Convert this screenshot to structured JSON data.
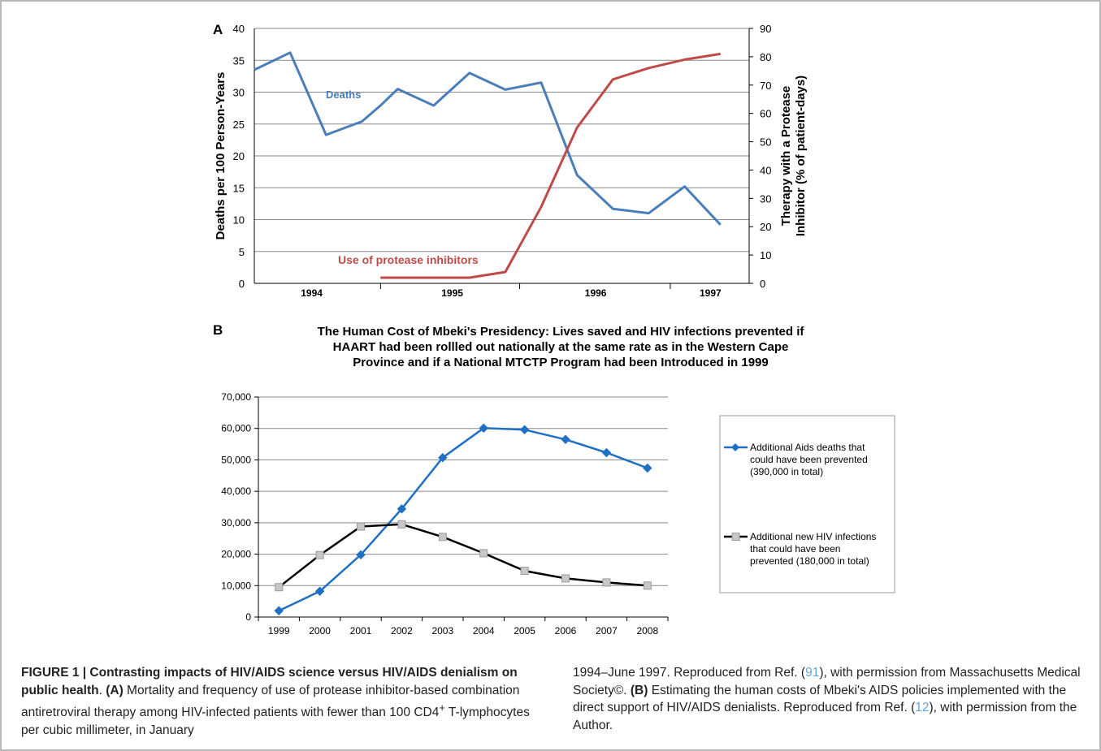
{
  "chart_data": [
    {
      "type": "line",
      "panel": "A",
      "ylabel_left": "Deaths per 100 Person-Years",
      "ylabel_right_line1": "Therapy with a Protease",
      "ylabel_right_line2": "Inhibitor (% of patient-days)",
      "ylim_left": [
        0,
        40
      ],
      "ylim_right": [
        0,
        90
      ],
      "yticks_left": [
        0,
        5,
        10,
        15,
        20,
        25,
        30,
        35,
        40
      ],
      "yticks_right": [
        0,
        10,
        20,
        30,
        40,
        50,
        60,
        70,
        80,
        90
      ],
      "year_labels": [
        "1994",
        "1995",
        "1996",
        "1997"
      ],
      "grid": true,
      "series": [
        {
          "name": "Deaths",
          "axis": "left",
          "color": "#4a7ebb",
          "x": [
            1994.0,
            1994.25,
            1994.5,
            1994.75,
            1994.88,
            1995.0,
            1995.25,
            1995.5,
            1995.75,
            1996.0,
            1996.25,
            1996.5,
            1996.75,
            1997.0,
            1997.25
          ],
          "values": [
            33.5,
            36.2,
            23.3,
            25.4,
            27.9,
            30.5,
            27.9,
            33.0,
            30.4,
            31.5,
            17.0,
            11.7,
            11.0,
            15.2,
            9.2
          ]
        },
        {
          "name": "Use of protease inhibitors",
          "axis": "right",
          "color": "#be4b48",
          "x": [
            1994.88,
            1995.0,
            1995.25,
            1995.5,
            1995.75,
            1996.0,
            1996.25,
            1996.5,
            1996.75,
            1997.0,
            1997.25
          ],
          "values": [
            2,
            2,
            2,
            2,
            4,
            27,
            55,
            72,
            76,
            79,
            81
          ]
        }
      ]
    },
    {
      "type": "line",
      "panel": "B",
      "title_lines": [
        "The Human Cost of Mbeki's Presidency: Lives saved and HIV infections prevented if",
        "HAART had been rollled out nationally at the same rate as in the Western Cape",
        "Province and if a National MTCTP Program had been Introduced in 1999"
      ],
      "categories": [
        "1999",
        "2000",
        "2001",
        "2002",
        "2003",
        "2004",
        "2005",
        "2006",
        "2007",
        "2008"
      ],
      "ylim": [
        0,
        70000
      ],
      "yticks": [
        "0",
        "10,000",
        "20,000",
        "30,000",
        "40,000",
        "50,000",
        "60,000",
        "70,000"
      ],
      "grid": true,
      "legend_position": "right",
      "series": [
        {
          "name_lines": [
            "Additional Aids deaths that",
            "could have been prevented",
            "(390,000 in total)"
          ],
          "color": "#1f6fc4",
          "marker": "diamond",
          "values": [
            2000,
            8200,
            19800,
            34400,
            50700,
            60100,
            59600,
            56500,
            52300,
            47400
          ]
        },
        {
          "name_lines": [
            "Additional new HIV infections",
            "that could have been",
            "prevented (180,000 in total)"
          ],
          "color": "#000000",
          "marker": "square",
          "values": [
            9500,
            19700,
            28800,
            29500,
            25500,
            20300,
            14700,
            12300,
            11000,
            10000
          ]
        }
      ]
    }
  ],
  "caption": {
    "left_bold": "FIGURE 1 | Contrasting impacts of HIV/AIDS science versus HIV/AIDS denialism on public health",
    "left_dot": ". ",
    "left_a": "(A)",
    "left_text": " Mortality and frequency of use of protease inhibitor-based combination antiretroviral therapy among HIV-infected patients with fewer than 100 CD4",
    "left_sup": "+",
    "left_text2": " T-lymphocytes per cubic millimeter, in January",
    "right_text1": "1994–June 1997. Reproduced from Ref. (",
    "right_ref1": "91",
    "right_text2": "), with permission from Massachusetts Medical Society©. ",
    "right_b": "(B)",
    "right_text3": " Estimating the human costs of Mbeki's AIDS policies implemented with the direct support of HIV/AIDS denialists. Reproduced from Ref. (",
    "right_ref2": "12",
    "right_text4": "), with permission from the Author."
  }
}
